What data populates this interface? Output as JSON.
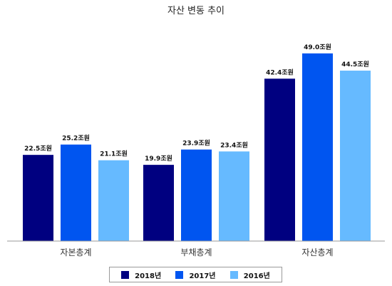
{
  "chart_data": {
    "type": "bar",
    "title": "자산 변동 추이",
    "categories": [
      "자본총계",
      "부채총계",
      "자산총계"
    ],
    "series": [
      {
        "name": "2018년",
        "color": "#000080",
        "values": [
          22.5,
          19.9,
          42.4
        ],
        "labels": [
          "22.5조원",
          "19.9조원",
          "42.4조원"
        ]
      },
      {
        "name": "2017년",
        "color": "#0055f0",
        "values": [
          25.2,
          23.9,
          49.0
        ],
        "labels": [
          "25.2조원",
          "23.9조원",
          "49.0조원"
        ]
      },
      {
        "name": "2016년",
        "color": "#66baff",
        "values": [
          21.1,
          23.4,
          44.5
        ],
        "labels": [
          "21.1조원",
          "23.4조원",
          "44.5조원"
        ]
      }
    ],
    "ylim": [
      0,
      52
    ],
    "grid": false,
    "legend_position": "bottom"
  }
}
